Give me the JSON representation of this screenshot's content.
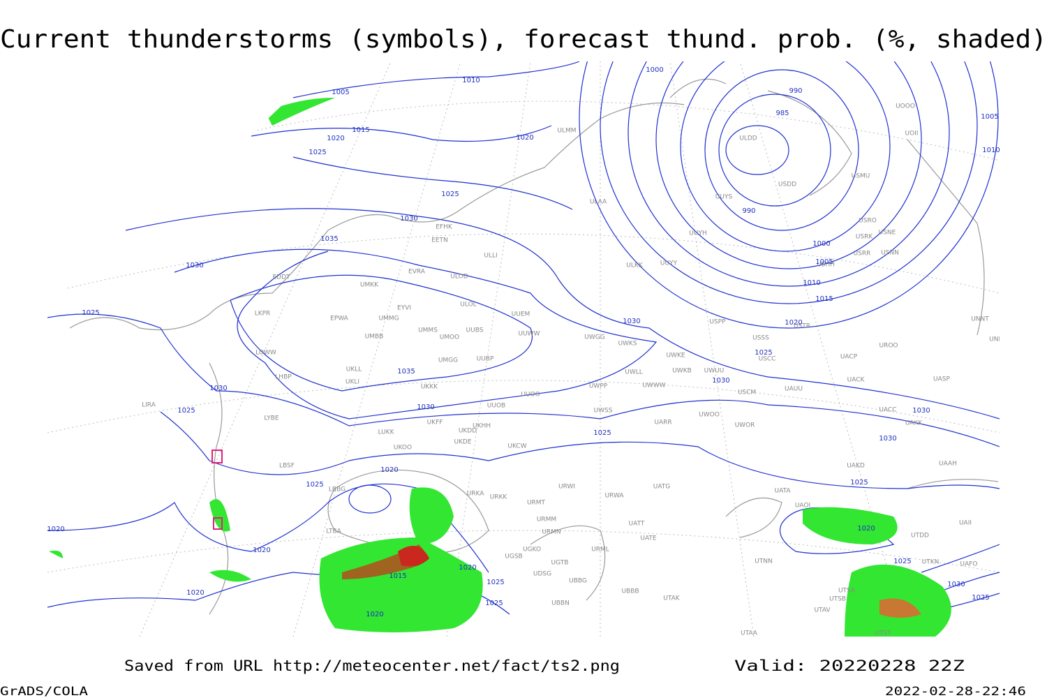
{
  "title": "Current thunderstorms (symbols), forecast thund. prob. (%, shaded)",
  "footer": {
    "saved": "Saved from URL http://meteocenter.net/fact/ts2.png",
    "valid": "Valid: 20220228 22Z",
    "software": "GrADS/COLA",
    "timestamp": "2022-02-28-22:46"
  },
  "isobar_labels": [
    "1010",
    "1005",
    "1015",
    "1020",
    "1025",
    "1020",
    "1025",
    "1030",
    "1035",
    "1030",
    "1025",
    "1030",
    "1025",
    "1035",
    "1030",
    "1030",
    "1000",
    "990",
    "985",
    "990",
    "1000",
    "1005",
    "1010",
    "1015",
    "1020",
    "1025",
    "1030",
    "1030",
    "1030",
    "1025",
    "1025",
    "1020",
    "1025",
    "1020",
    "1020",
    "1015",
    "1020",
    "1025",
    "1025",
    "1020",
    "1020",
    "1020",
    "1025",
    "1030",
    "1025",
    "1010",
    "1005"
  ],
  "stations": [
    "ULMM",
    "ULAA",
    "EFHK",
    "EETN",
    "ULLI",
    "ULOL",
    "ULOD",
    "EVRA",
    "UMKK",
    "EYVI",
    "UMMG",
    "EPWA",
    "UMMS",
    "UMOO",
    "UUBS",
    "UUEM",
    "UUWW",
    "UMBB",
    "EDDT",
    "LKPR",
    "LOWW",
    "LHBP",
    "UKLL",
    "UKLI",
    "UMGG",
    "UUBP",
    "UKKK",
    "UUOO",
    "UUOB",
    "UKHH",
    "UKDD",
    "UKFF",
    "UKDE",
    "UKCW",
    "LUKK",
    "UKOO",
    "LYBE",
    "LBSF",
    "LIRA",
    "LBBG",
    "URKA",
    "URKK",
    "URMT",
    "URMM",
    "URMN",
    "URWI",
    "URWA",
    "UATG",
    "UATE",
    "UATT",
    "URML",
    "UGSB",
    "UGTB",
    "UBBG",
    "UDSG",
    "UBBN",
    "UBBB",
    "UTAK",
    "UGKO",
    "LTBA",
    "UWGG",
    "UWKS",
    "UWKE",
    "UWWW",
    "UWLL",
    "UWKB",
    "UWUU",
    "UWPP",
    "UWSS",
    "UARR",
    "UWOO",
    "UWOR",
    "USCM",
    "UAUU",
    "USSS",
    "USCC",
    "USTR",
    "USPP",
    "ULKK",
    "UUYY",
    "UUYH",
    "UUYS",
    "ULDD",
    "USDD",
    "USMU",
    "USRO",
    "USRK",
    "USNE",
    "USRR",
    "USNN",
    "USHH",
    "UOOO",
    "UOII",
    "UNNT",
    "UNBB",
    "UROO",
    "UACP",
    "UACK",
    "UASP",
    "UACC",
    "UAKK",
    "UAKD",
    "UAAH",
    "UATA",
    "UAOI",
    "UTNN",
    "UTSA",
    "UTSB",
    "UTAV",
    "UTAA",
    "UTST",
    "UAII",
    "UTDD",
    "UTKN",
    "UAFO"
  ]
}
